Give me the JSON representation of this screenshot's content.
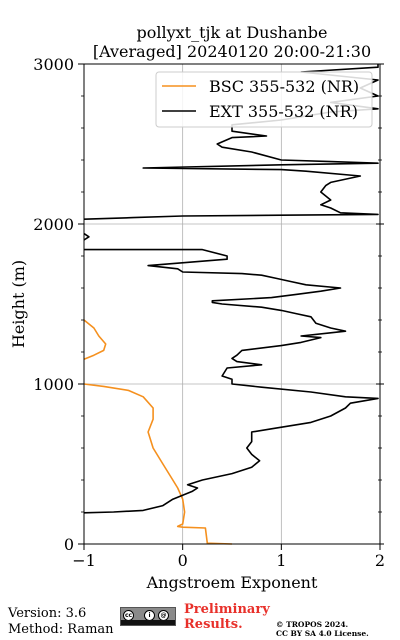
{
  "chart_data": {
    "type": "line",
    "title": "pollyxt_tjk at Dushanbe",
    "subtitle": "[Averaged] 20240120 20:00-21:30",
    "xlabel": "Angstroem Exponent",
    "ylabel": "Height (m)",
    "xlim": [
      -1,
      2
    ],
    "ylim": [
      0,
      3000
    ],
    "xticks": [
      -1,
      0,
      1,
      2
    ],
    "yticks": [
      0,
      1000,
      2000,
      3000
    ],
    "grid": true,
    "legend_position": "top-right",
    "series": [
      {
        "name": "BSC 355-532 (NR)",
        "color": "#f5901e",
        "points": [
          [
            0.5,
            0
          ],
          [
            0.25,
            5
          ],
          [
            0.23,
            100
          ],
          [
            0.0,
            105
          ],
          [
            -0.05,
            110
          ],
          [
            0.0,
            125
          ],
          [
            0.02,
            200
          ],
          [
            0.0,
            280
          ],
          [
            -0.05,
            350
          ],
          [
            -0.1,
            400
          ],
          [
            -0.2,
            500
          ],
          [
            -0.3,
            600
          ],
          [
            -0.35,
            700
          ],
          [
            -0.3,
            780
          ],
          [
            -0.3,
            850
          ],
          [
            -0.4,
            920
          ],
          [
            -0.55,
            960
          ],
          [
            -0.8,
            985
          ],
          [
            -1,
            1000
          ],
          [
            null,
            null
          ],
          [
            -1,
            1155
          ],
          [
            -0.9,
            1180
          ],
          [
            -0.8,
            1210
          ],
          [
            -0.78,
            1250
          ],
          [
            -0.85,
            1300
          ],
          [
            -0.9,
            1350
          ],
          [
            -1,
            1400
          ]
        ]
      },
      {
        "name": "EXT 355-532 (NR)",
        "color": "#000000",
        "points": [
          [
            -1,
            195
          ],
          [
            -0.7,
            200
          ],
          [
            -0.4,
            210
          ],
          [
            -0.2,
            240
          ],
          [
            -0.1,
            280
          ],
          [
            0.1,
            330
          ],
          [
            0.15,
            350
          ],
          [
            0.05,
            370
          ],
          [
            0.2,
            400
          ],
          [
            0.5,
            440
          ],
          [
            0.7,
            480
          ],
          [
            0.78,
            520
          ],
          [
            0.7,
            560
          ],
          [
            0.65,
            600
          ],
          [
            0.7,
            640
          ],
          [
            0.7,
            700
          ],
          [
            0.9,
            720
          ],
          [
            1.3,
            760
          ],
          [
            1.5,
            800
          ],
          [
            1.65,
            850
          ],
          [
            1.7,
            880
          ],
          [
            1.98,
            910
          ],
          [
            1.65,
            920
          ],
          [
            1.3,
            950
          ],
          [
            0.8,
            980
          ],
          [
            0.5,
            1000
          ],
          [
            0.5,
            1030
          ],
          [
            0.4,
            1050
          ],
          [
            0.45,
            1100
          ],
          [
            0.8,
            1120
          ],
          [
            0.55,
            1140
          ],
          [
            0.5,
            1160
          ],
          [
            0.55,
            1180
          ],
          [
            0.6,
            1210
          ],
          [
            1.0,
            1240
          ],
          [
            1.2,
            1260
          ],
          [
            1.4,
            1290
          ],
          [
            1.2,
            1300
          ],
          [
            1.5,
            1320
          ],
          [
            1.65,
            1330
          ],
          [
            1.5,
            1350
          ],
          [
            1.35,
            1380
          ],
          [
            1.3,
            1420
          ],
          [
            1.15,
            1440
          ],
          [
            1.0,
            1460
          ],
          [
            0.8,
            1480
          ],
          [
            0.4,
            1500
          ],
          [
            0.3,
            1510
          ],
          [
            0.3,
            1520
          ],
          [
            0.9,
            1540
          ],
          [
            1.15,
            1560
          ],
          [
            1.4,
            1580
          ],
          [
            1.6,
            1600
          ],
          [
            1.25,
            1620
          ],
          [
            1.1,
            1640
          ],
          [
            0.95,
            1660
          ],
          [
            0.8,
            1680
          ],
          [
            0.6,
            1690
          ],
          [
            0.0,
            1700
          ],
          [
            -0.05,
            1720
          ],
          [
            -0.35,
            1740
          ],
          [
            0.45,
            1780
          ],
          [
            0.45,
            1800
          ],
          [
            0.2,
            1840
          ],
          [
            -1,
            1840
          ],
          [
            null,
            null
          ],
          [
            -1,
            1900
          ],
          [
            -0.95,
            1920
          ],
          [
            -1,
            1940
          ],
          [
            null,
            null
          ],
          [
            -1,
            2030
          ],
          [
            -0.5,
            2040
          ],
          [
            0.0,
            2050
          ],
          [
            1.0,
            2055
          ],
          [
            1.98,
            2060
          ],
          [
            1.6,
            2070
          ],
          [
            1.5,
            2100
          ],
          [
            1.4,
            2120
          ],
          [
            1.5,
            2150
          ],
          [
            1.4,
            2200
          ],
          [
            1.45,
            2240
          ],
          [
            1.5,
            2260
          ],
          [
            1.8,
            2300
          ],
          [
            1.25,
            2330
          ],
          [
            1.0,
            2340
          ],
          [
            -0.4,
            2350
          ],
          [
            1.0,
            2370
          ],
          [
            1.98,
            2380
          ],
          [
            1.5,
            2390
          ],
          [
            1.0,
            2400
          ],
          [
            0.7,
            2450
          ],
          [
            0.4,
            2480
          ],
          [
            0.35,
            2500
          ],
          [
            0.5,
            2540
          ],
          [
            0.85,
            2550
          ],
          [
            0.5,
            2580
          ],
          [
            0.5,
            2620
          ],
          [
            1.0,
            2650
          ],
          [
            1.5,
            2700
          ],
          [
            1.98,
            2720
          ],
          [
            1.5,
            2760
          ],
          [
            1.98,
            2800
          ],
          [
            1.8,
            2850
          ],
          [
            1.98,
            2900
          ],
          [
            1.2,
            2950
          ],
          [
            1.98,
            2980
          ],
          [
            1.98,
            3000
          ]
        ]
      }
    ]
  },
  "footer": {
    "version": "Version: 3.6",
    "method": "Method: Raman",
    "preliminary_line1": "Preliminary",
    "preliminary_line2": "Results.",
    "copyright_line1": "© TROPOS 2024.",
    "copyright_line2": "CC BY SA 4.0 License.",
    "badge_symbols": [
      "cc",
      "i",
      "@"
    ],
    "badge_text": "BY SA"
  }
}
